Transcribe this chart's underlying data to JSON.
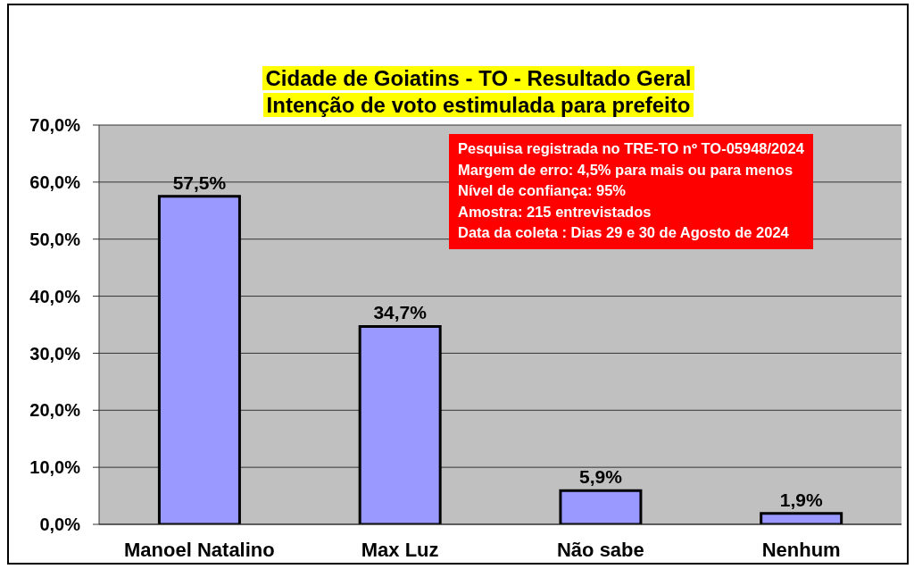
{
  "chart_data": {
    "type": "bar",
    "title": "Cidade de Goiatins - TO - Resultado Geral",
    "subtitle": "Intenção de voto estimulada para prefeito",
    "categories": [
      "Manoel Natalino",
      "Max Luz",
      "Não sabe",
      "Nenhum"
    ],
    "values": [
      57.5,
      34.7,
      5.9,
      1.9
    ],
    "value_labels": [
      "57,5%",
      "34,7%",
      "5,9%",
      "1,9%"
    ],
    "color": "#9999ff",
    "ylim": [
      0,
      70
    ],
    "yticks": [
      {
        "value": 0,
        "label": "0,0%"
      },
      {
        "value": 10,
        "label": "10,0%"
      },
      {
        "value": 20,
        "label": "20,0%"
      },
      {
        "value": 30,
        "label": "30,0%"
      },
      {
        "value": 40,
        "label": "40,0%"
      },
      {
        "value": 50,
        "label": "50,0%"
      },
      {
        "value": 60,
        "label": "60,0%"
      },
      {
        "value": 70,
        "label": "70,0%"
      }
    ],
    "grid": "y",
    "annotations": [
      "Pesquisa registrada no TRE-TO nº TO-05948/2024",
      "Margem de erro: 4,5% para mais ou para menos",
      "Nível de confiança: 95%",
      "Amostra: 215 entrevistados",
      "Data da coleta : Dias 29 e 30 de Agosto de 2024"
    ]
  }
}
